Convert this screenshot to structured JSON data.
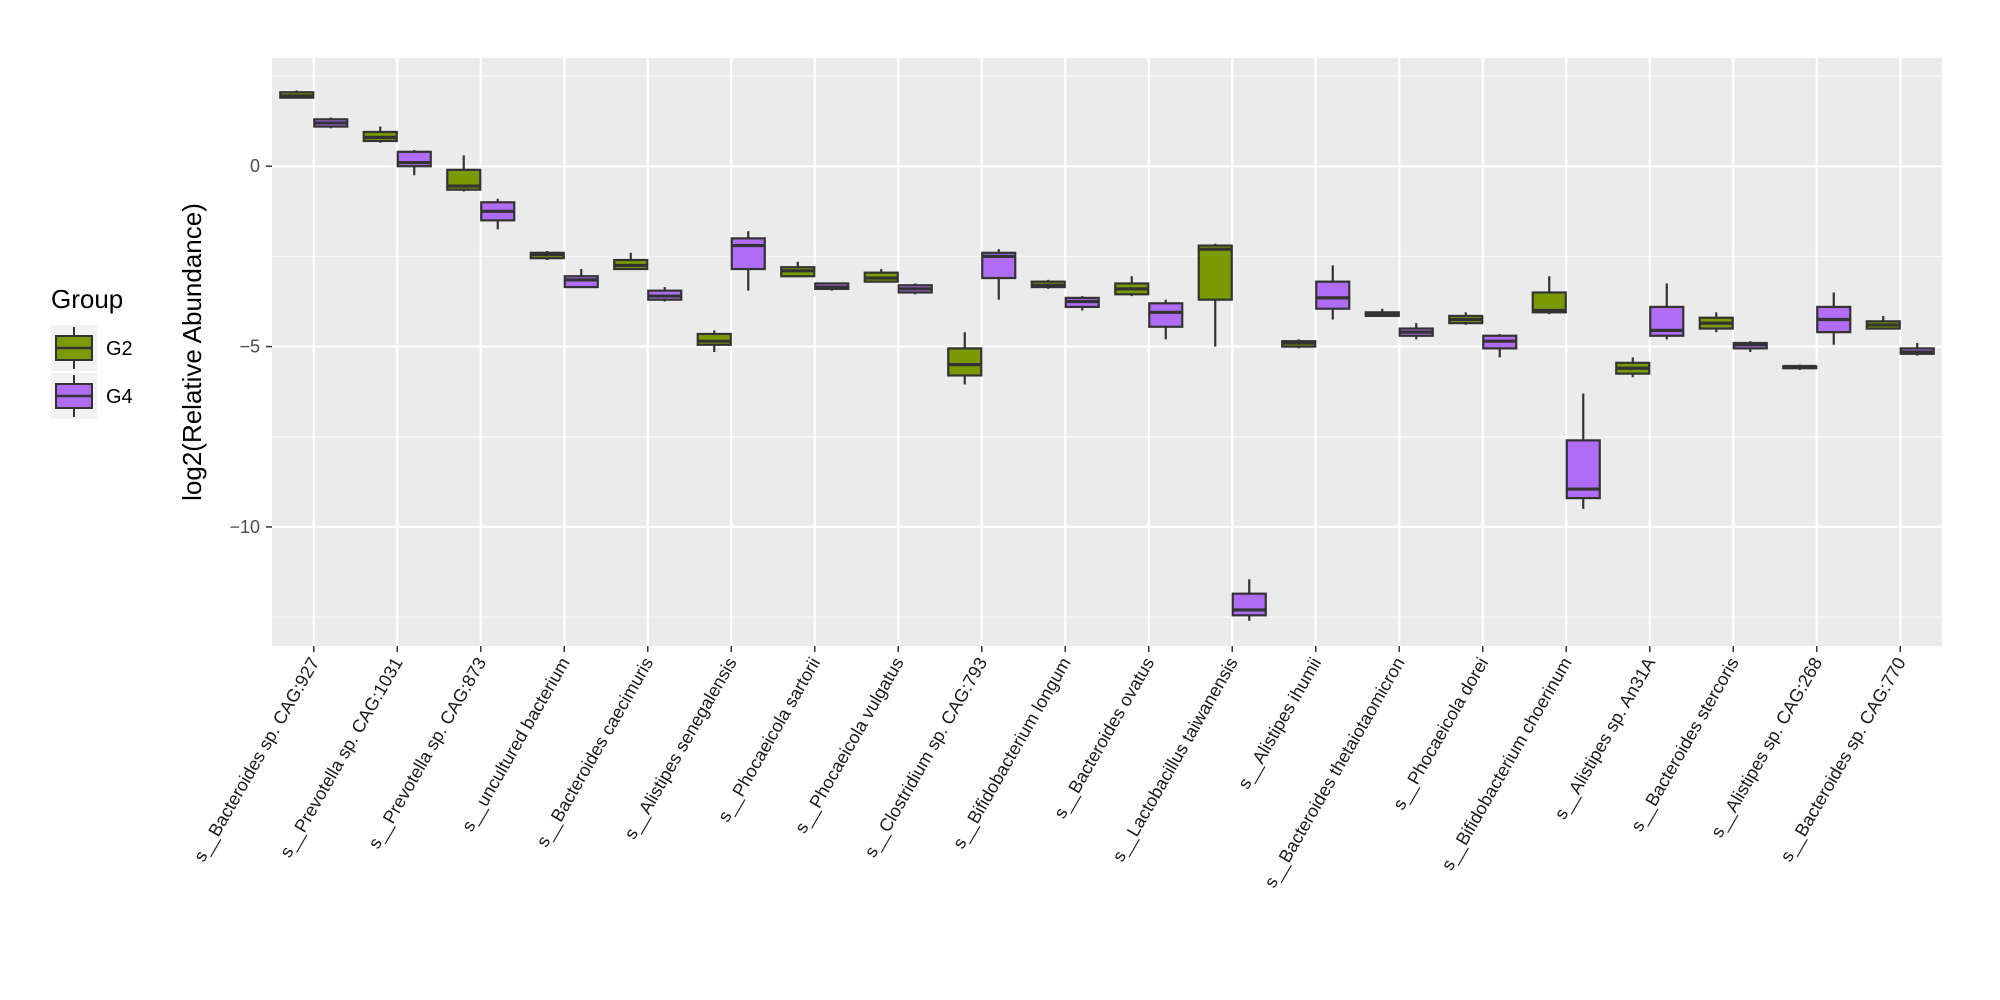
{
  "chart_data": {
    "type": "boxplot",
    "title": "",
    "xlabel": "",
    "ylabel": "log2(Relative Abundance)",
    "ylim": [
      -13.3,
      3.0
    ],
    "yticks": [
      0,
      -5,
      -10
    ],
    "grid": true,
    "legend": {
      "title": "Group",
      "position": "left",
      "entries": [
        {
          "name": "G2",
          "color": "#7a9a01"
        },
        {
          "name": "G4",
          "color": "#b06cf5"
        }
      ]
    },
    "categories": [
      "s__Bacteroides sp. CAG:927",
      "s__Prevotella sp. CAG:1031",
      "s__Prevotella sp. CAG:873",
      "s__uncultured bacterium",
      "s__Bacteroides caecimuris",
      "s__Alistipes senegalensis",
      "s__Phocaeicola sartorii",
      "s__Phocaeicola vulgatus",
      "s__Clostridium sp. CAG:793",
      "s__Bifidobacterium longum",
      "s__Bacteroides ovatus",
      "s__Lactobacillus taiwanensis",
      "s__Alistipes ihumii",
      "s__Bacteroides thetaiotaomicron",
      "s__Phocaeicola dorei",
      "s__Bifidobacterium choerinum",
      "s__Alistipes sp. An31A",
      "s__Bacteroides stercoris",
      "s__Alistipes sp. CAG:268",
      "s__Bacteroides sp. CAG:770"
    ],
    "series": [
      {
        "name": "G2",
        "color": "#7a9a01",
        "boxes": [
          {
            "min": 1.9,
            "q1": 1.9,
            "median": 1.95,
            "q3": 2.05,
            "max": 2.1
          },
          {
            "min": 0.65,
            "q1": 0.7,
            "median": 0.8,
            "q3": 0.95,
            "max": 1.1
          },
          {
            "min": -0.7,
            "q1": -0.65,
            "median": -0.55,
            "q3": -0.1,
            "max": 0.3
          },
          {
            "min": -2.6,
            "q1": -2.55,
            "median": -2.45,
            "q3": -2.4,
            "max": -2.35
          },
          {
            "min": -2.85,
            "q1": -2.85,
            "median": -2.75,
            "q3": -2.6,
            "max": -2.4
          },
          {
            "min": -5.15,
            "q1": -4.95,
            "median": -4.85,
            "q3": -4.65,
            "max": -4.55
          },
          {
            "min": -3.05,
            "q1": -3.05,
            "median": -2.9,
            "q3": -2.8,
            "max": -2.65
          },
          {
            "min": -3.2,
            "q1": -3.2,
            "median": -3.1,
            "q3": -2.95,
            "max": -2.85
          },
          {
            "min": -6.05,
            "q1": -5.8,
            "median": -5.5,
            "q3": -5.05,
            "max": -4.6
          },
          {
            "min": -3.4,
            "q1": -3.35,
            "median": -3.3,
            "q3": -3.2,
            "max": -3.15
          },
          {
            "min": -3.6,
            "q1": -3.55,
            "median": -3.4,
            "q3": -3.25,
            "max": -3.05
          },
          {
            "min": -5.0,
            "q1": -3.7,
            "median": -2.3,
            "q3": -2.2,
            "max": -2.15
          },
          {
            "min": -5.05,
            "q1": -5.0,
            "median": -4.9,
            "q3": -4.85,
            "max": -4.8
          },
          {
            "min": -4.15,
            "q1": -4.15,
            "median": -4.1,
            "q3": -4.05,
            "max": -3.95
          },
          {
            "min": -4.4,
            "q1": -4.35,
            "median": -4.25,
            "q3": -4.15,
            "max": -4.05
          },
          {
            "min": -4.1,
            "q1": -4.05,
            "median": -4.0,
            "q3": -3.5,
            "max": -3.05
          },
          {
            "min": -5.85,
            "q1": -5.75,
            "median": -5.6,
            "q3": -5.45,
            "max": -5.3
          },
          {
            "min": -4.6,
            "q1": -4.5,
            "median": -4.35,
            "q3": -4.2,
            "max": -4.05
          },
          {
            "min": -5.65,
            "q1": -5.6,
            "median": -5.55,
            "q3": -5.55,
            "max": -5.5
          },
          {
            "min": -4.5,
            "q1": -4.5,
            "median": -4.4,
            "q3": -4.3,
            "max": -4.15
          }
        ]
      },
      {
        "name": "G4",
        "color": "#b06cf5",
        "boxes": [
          {
            "min": 1.05,
            "q1": 1.1,
            "median": 1.2,
            "q3": 1.3,
            "max": 1.35
          },
          {
            "min": -0.25,
            "q1": 0.0,
            "median": 0.1,
            "q3": 0.4,
            "max": 0.45
          },
          {
            "min": -1.75,
            "q1": -1.5,
            "median": -1.25,
            "q3": -1.0,
            "max": -0.9
          },
          {
            "min": -3.35,
            "q1": -3.35,
            "median": -3.15,
            "q3": -3.05,
            "max": -2.85
          },
          {
            "min": -3.75,
            "q1": -3.7,
            "median": -3.6,
            "q3": -3.45,
            "max": -3.35
          },
          {
            "min": -3.45,
            "q1": -2.85,
            "median": -2.2,
            "q3": -2.0,
            "max": -1.8
          },
          {
            "min": -3.45,
            "q1": -3.4,
            "median": -3.35,
            "q3": -3.25,
            "max": -3.25
          },
          {
            "min": -3.55,
            "q1": -3.5,
            "median": -3.4,
            "q3": -3.3,
            "max": -3.25
          },
          {
            "min": -3.7,
            "q1": -3.1,
            "median": -2.5,
            "q3": -2.4,
            "max": -2.3
          },
          {
            "min": -4.0,
            "q1": -3.9,
            "median": -3.75,
            "q3": -3.65,
            "max": -3.6
          },
          {
            "min": -4.8,
            "q1": -4.45,
            "median": -4.05,
            "q3": -3.8,
            "max": -3.7
          },
          {
            "min": -12.6,
            "q1": -12.45,
            "median": -12.3,
            "q3": -11.85,
            "max": -11.45
          },
          {
            "min": -4.25,
            "q1": -3.95,
            "median": -3.65,
            "q3": -3.2,
            "max": -2.75
          },
          {
            "min": -4.8,
            "q1": -4.7,
            "median": -4.6,
            "q3": -4.5,
            "max": -4.35
          },
          {
            "min": -5.3,
            "q1": -5.05,
            "median": -4.85,
            "q3": -4.7,
            "max": -4.65
          },
          {
            "min": -9.5,
            "q1": -9.2,
            "median": -8.95,
            "q3": -7.6,
            "max": -6.3
          },
          {
            "min": -4.8,
            "q1": -4.7,
            "median": -4.55,
            "q3": -3.9,
            "max": -3.25
          },
          {
            "min": -5.15,
            "q1": -5.05,
            "median": -4.95,
            "q3": -4.9,
            "max": -4.85
          },
          {
            "min": -4.95,
            "q1": -4.6,
            "median": -4.25,
            "q3": -3.9,
            "max": -3.5
          },
          {
            "min": -5.25,
            "q1": -5.2,
            "median": -5.15,
            "q3": -5.05,
            "max": -4.9
          }
        ]
      }
    ]
  }
}
